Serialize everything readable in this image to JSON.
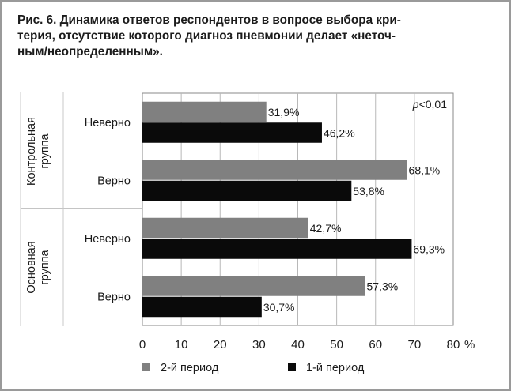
{
  "figure": {
    "caption": "Рис. 6. Динамика ответов респондентов в вопросе выбора кри-\nтерия, отсутствие которого диагноз пневмонии делает «неточ-\nным/неопределенным»."
  },
  "chart_data": {
    "type": "bar",
    "orientation": "horizontal",
    "annotation": "p<0,01",
    "annotation_prefix": "p",
    "annotation_suffix": "<0,01",
    "groups": [
      {
        "name": "Контрольная\nгруппа",
        "categories": [
          "Неверно",
          "Верно"
        ]
      },
      {
        "name": "Основная\nгруппа",
        "categories": [
          "Неверно",
          "Верно"
        ]
      }
    ],
    "categories": [
      "Неверно",
      "Верно",
      "Неверно",
      "Верно"
    ],
    "series": [
      {
        "name": "2-й период",
        "color": "#808080",
        "values": [
          31.9,
          68.1,
          42.7,
          57.3
        ],
        "labels": [
          "31,9%",
          "68,1%",
          "42,7%",
          "57,3%"
        ]
      },
      {
        "name": "1-й период",
        "color": "#0a0a0a",
        "values": [
          46.2,
          53.8,
          69.3,
          30.7
        ],
        "labels": [
          "46,2%",
          "53,8%",
          "69,3%",
          "30,7%"
        ]
      }
    ],
    "xlim": [
      0,
      80
    ],
    "xticks": [
      0,
      10,
      20,
      30,
      40,
      50,
      60,
      70,
      80
    ],
    "xunit": "%",
    "grid": true,
    "legend_position": "bottom"
  }
}
